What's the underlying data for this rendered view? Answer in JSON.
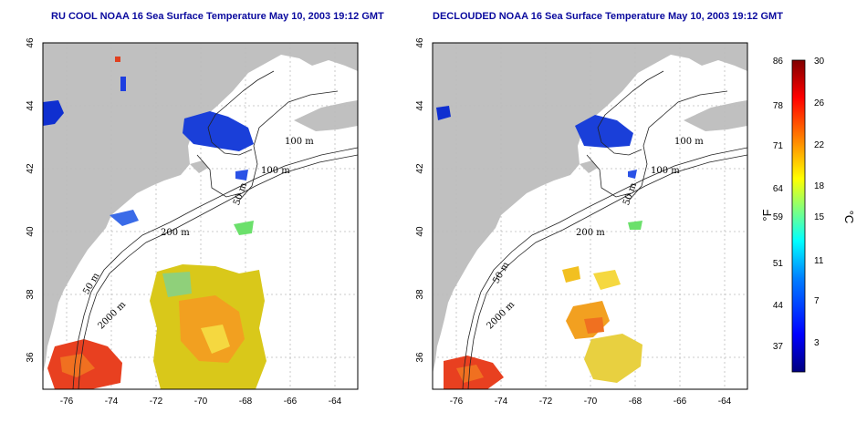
{
  "panels": [
    {
      "title": "RU COOL NOAA 16 Sea Surface Temperature May 10, 2003 19:12 GMT",
      "contour_labels": [
        "100 m",
        "100 m",
        "50 m",
        "200 m",
        "50 m",
        "2000 m"
      ]
    },
    {
      "title": "DECLOUDED NOAA 16 Sea Surface Temperature May 10, 2003 19:12 GMT",
      "contour_labels": [
        "100 m",
        "100 m",
        "50 m",
        "200 m",
        "50 m",
        "2000 m"
      ]
    }
  ],
  "map_axes": {
    "lon_ticks": [
      "-76",
      "-74",
      "-72",
      "-70",
      "-68",
      "-66",
      "-64"
    ],
    "lat_ticks": [
      "46",
      "44",
      "42",
      "40",
      "38",
      "36"
    ],
    "lon_range": [
      -77,
      -62.8
    ],
    "lat_range": [
      35,
      46
    ]
  },
  "colorbar": {
    "fahrenheit_ticks": [
      "86",
      "78",
      "71",
      "64",
      "59",
      "51",
      "44",
      "37"
    ],
    "celsius_ticks": [
      "30",
      "26",
      "22",
      "18",
      "15",
      "11",
      "7",
      "3"
    ],
    "unit_f": "°F",
    "unit_c": "°C",
    "range_c": [
      0,
      30
    ],
    "colors": [
      "#00007f",
      "#0000ff",
      "#007fff",
      "#00ffff",
      "#7fff7f",
      "#ffff00",
      "#ff7f00",
      "#ff0000",
      "#7f0000"
    ]
  },
  "colors": {
    "land": "#c0c0c0",
    "sea": "#ffffff",
    "title": "#0a0a9e",
    "grid": "#bbbbbb"
  }
}
